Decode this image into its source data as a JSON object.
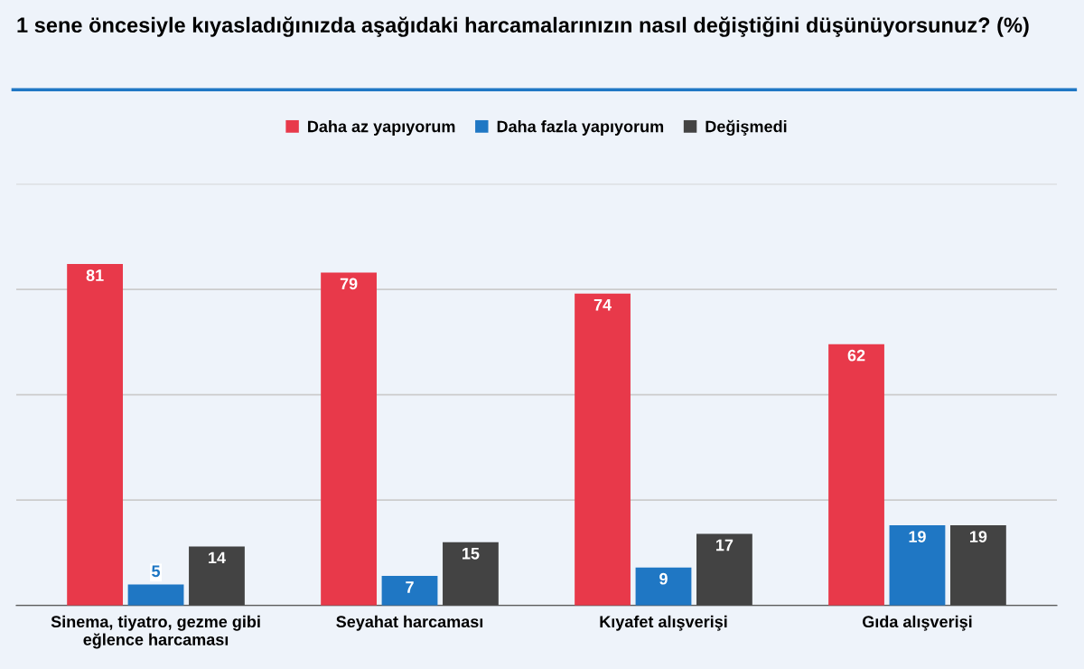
{
  "chart_data": {
    "type": "bar",
    "title": "1 sene öncesiyle kıyasladığınızda aşağıdaki harcamalarınızın nasıl değiştiğini düşünüyorsunuz? (%)",
    "categories": [
      "Sinema, tiyatro, gezme gibi\neğlence harcaması",
      "Seyahat harcaması",
      "Kıyafet alışverişi",
      "Gıda alışverişi"
    ],
    "series": [
      {
        "name": "Daha az yapıyorum",
        "color": "#e8394a",
        "values": [
          81,
          79,
          74,
          62
        ]
      },
      {
        "name": "Daha fazla yapıyorum",
        "color": "#1f77c4",
        "values": [
          5,
          7,
          9,
          19
        ]
      },
      {
        "name": "Değişmedi",
        "color": "#434343",
        "values": [
          14,
          15,
          17,
          19
        ]
      }
    ],
    "ylim": [
      0,
      100
    ],
    "yticks": [
      {
        "value": 0,
        "label": null
      },
      {
        "value": 25,
        "label": null
      },
      {
        "value": 50,
        "label": null
      },
      {
        "value": 75,
        "label": null
      },
      {
        "value": 100,
        "label": null
      }
    ],
    "tick_labels": "x",
    "grid": "y",
    "legend": "top",
    "data_labels": true
  }
}
